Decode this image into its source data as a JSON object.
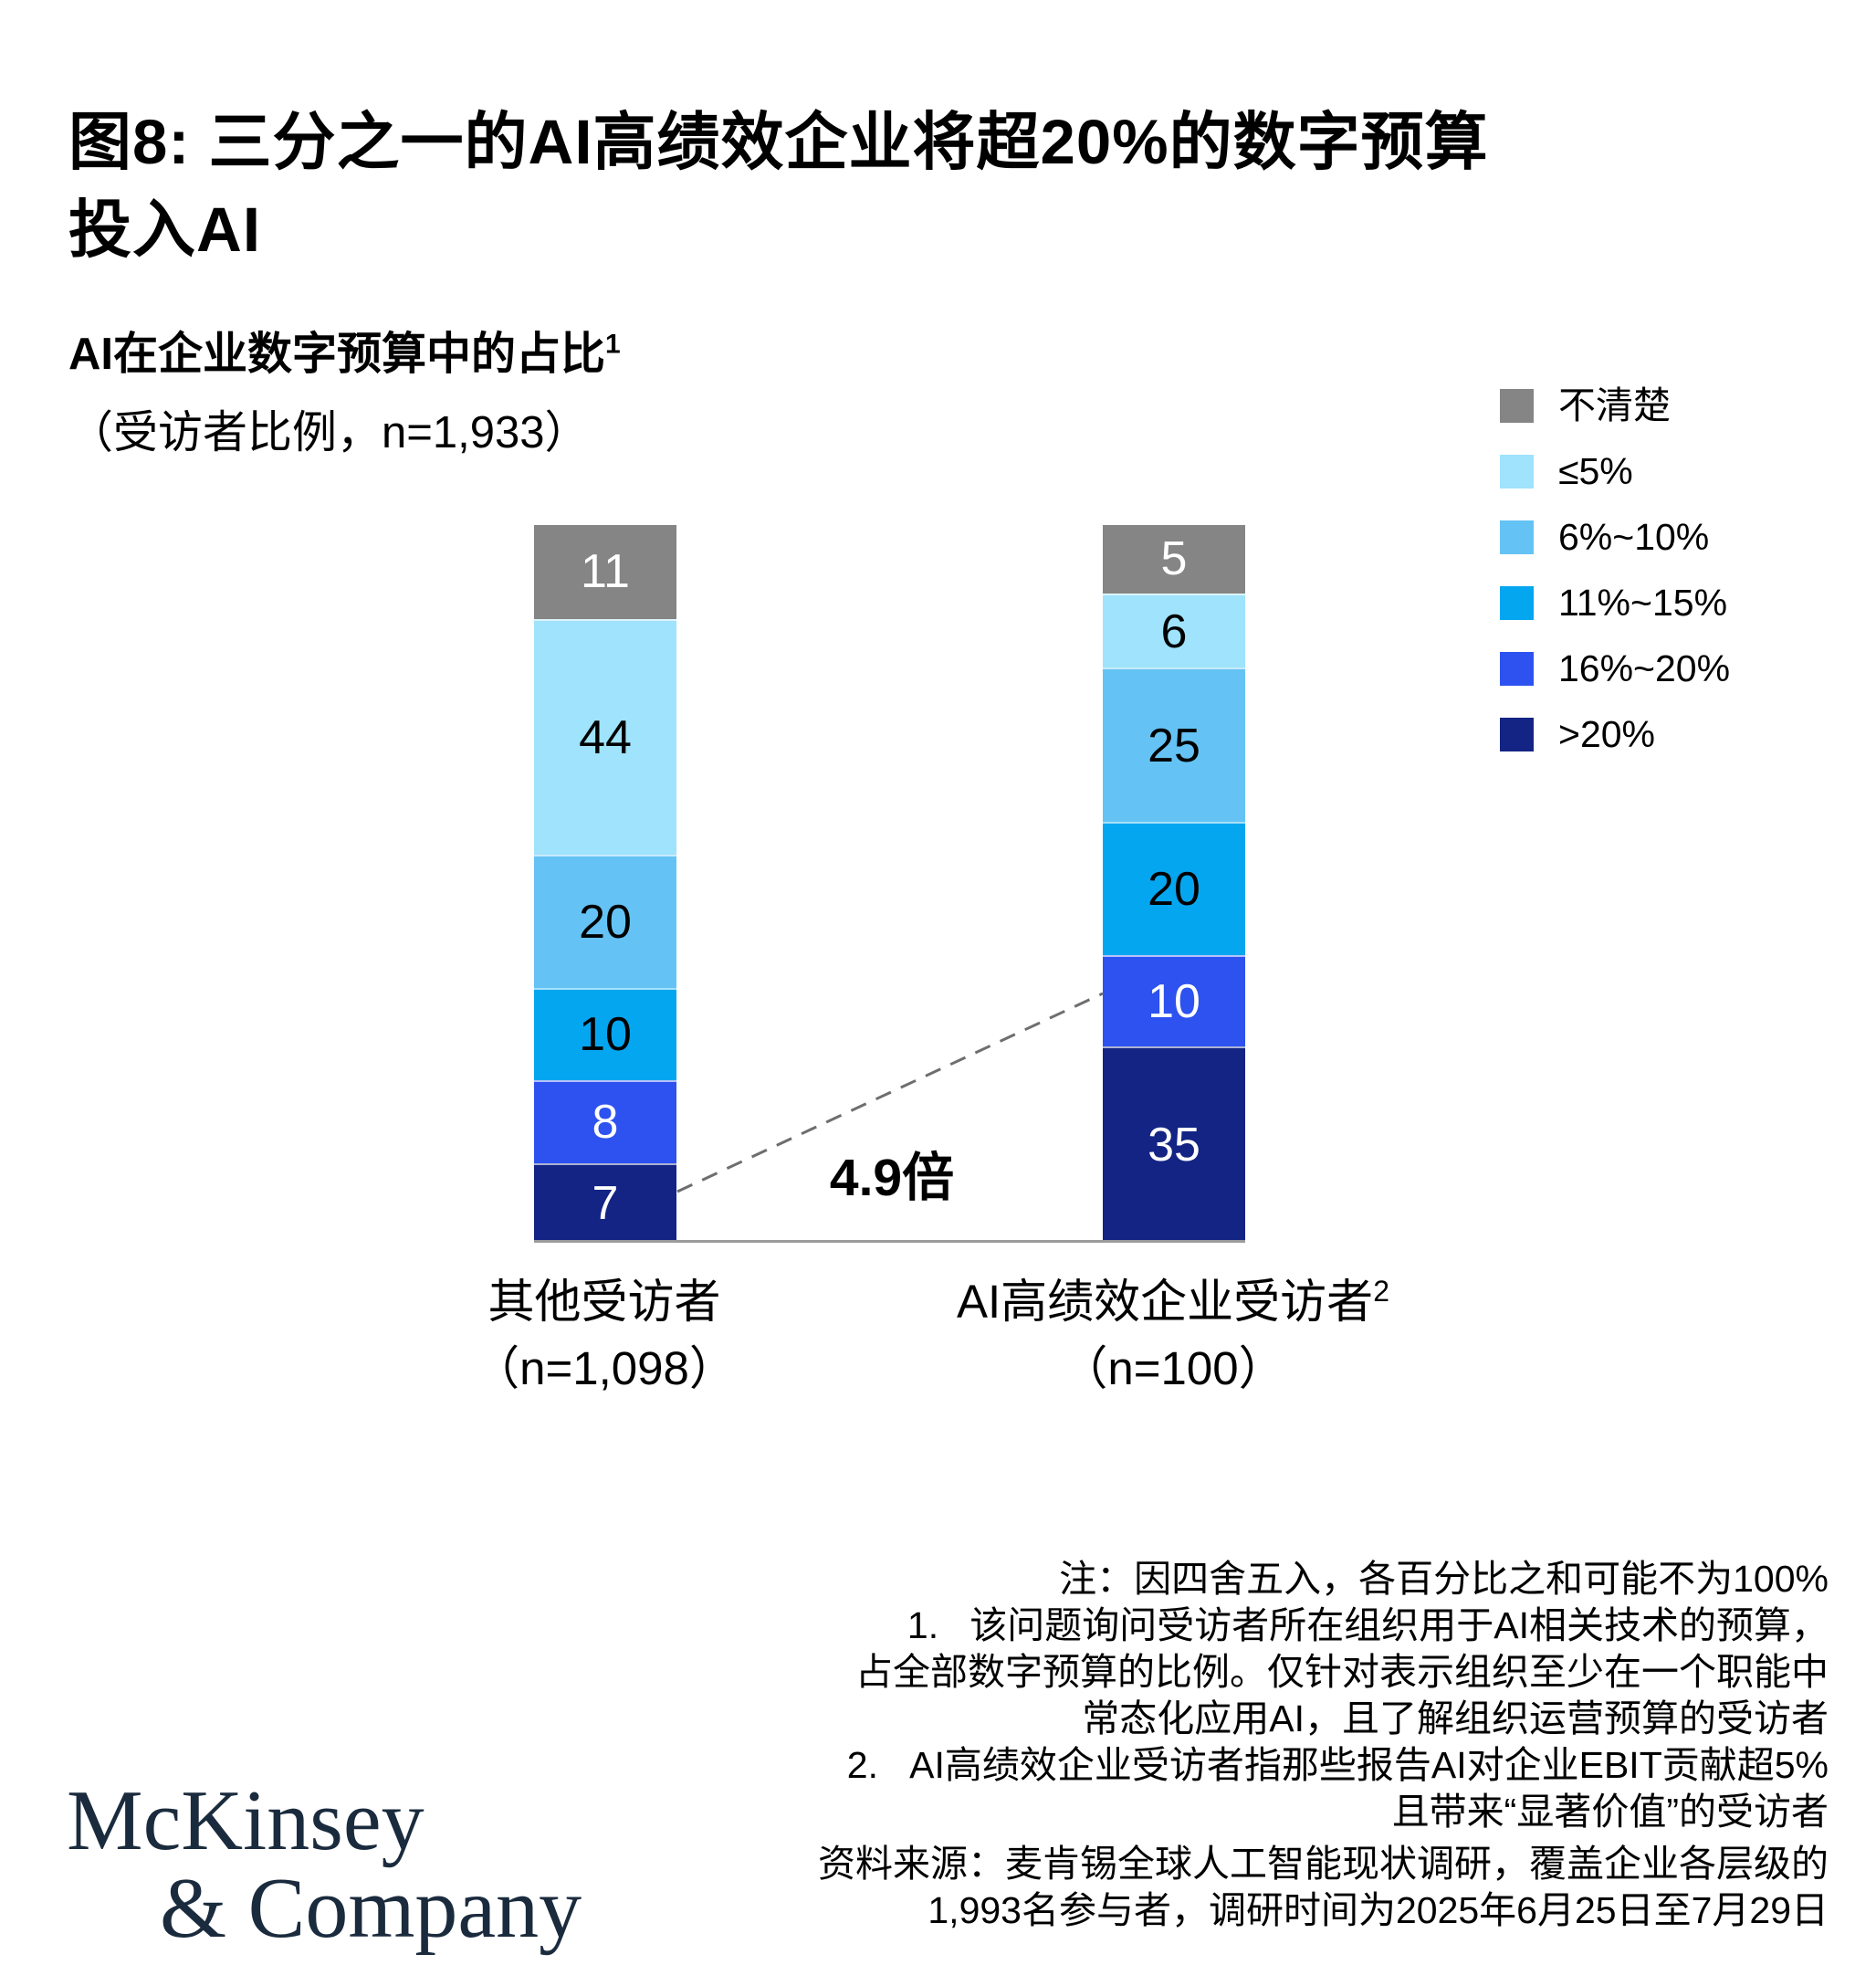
{
  "title": {
    "line1": "图8: 三分之一的AI高绩效企业将超20%的数字预算",
    "line2": "投入AI"
  },
  "subtitle": {
    "line1": "AI在企业数字预算中的占比",
    "sup": "1",
    "line2": "（受访者比例，n=1,933）"
  },
  "chart_data": {
    "type": "bar",
    "stacked": true,
    "title": "AI在企业数字预算中的占比",
    "legend_position": "top-right",
    "gridlines": false,
    "categories": [
      {
        "line1": "其他受访者",
        "sup": "",
        "line2": "（n=1,098）"
      },
      {
        "line1": "AI高绩效企业受访者",
        "sup": "2",
        "line2": "（n=100）"
      }
    ],
    "series": [
      {
        "name": "不清楚",
        "color": "#858585",
        "label_color": "#ffffff",
        "values": [
          11,
          5
        ]
      },
      {
        "name": "≤5%",
        "color": "#9FE3FC",
        "label_color": "#000000",
        "values": [
          44,
          6
        ]
      },
      {
        "name": "6%~10%",
        "color": "#64C3F4",
        "label_color": "#000000",
        "values": [
          20,
          25
        ]
      },
      {
        "name": "11%~15%",
        "color": "#05A6F0",
        "label_color": "#000000",
        "values": [
          10,
          20
        ]
      },
      {
        "name": "16%~20%",
        "color": "#2D52F0",
        "label_color": "#ffffff",
        "values": [
          8,
          10
        ]
      },
      {
        "name": ">20%",
        "color": "#132484",
        "label_color": "#ffffff",
        "values": [
          7,
          35
        ]
      }
    ],
    "annotation": "4.9倍"
  },
  "footnotes": {
    "lines": [
      "注：因四舍五入，各百分比之和可能不为100%",
      "1.   该问题询问受访者所在组织用于AI相关技术的预算，",
      "占全部数字预算的比例。仅针对表示组织至少在一个职能中",
      "常态化应用AI，且了解组织运营预算的受访者",
      "2.   AI高绩效企业受访者指那些报告AI对企业EBIT贡献超5%",
      "且带来“显著价值”的受访者"
    ]
  },
  "source": {
    "lines": [
      "资料来源：麦肯锡全球人工智能现状调研，覆盖企业各层级的",
      "1,993名参与者，调研时间为2025年6月25日至7月29日"
    ]
  },
  "logo": {
    "line1": "McKinsey",
    "line2": "& Company"
  }
}
